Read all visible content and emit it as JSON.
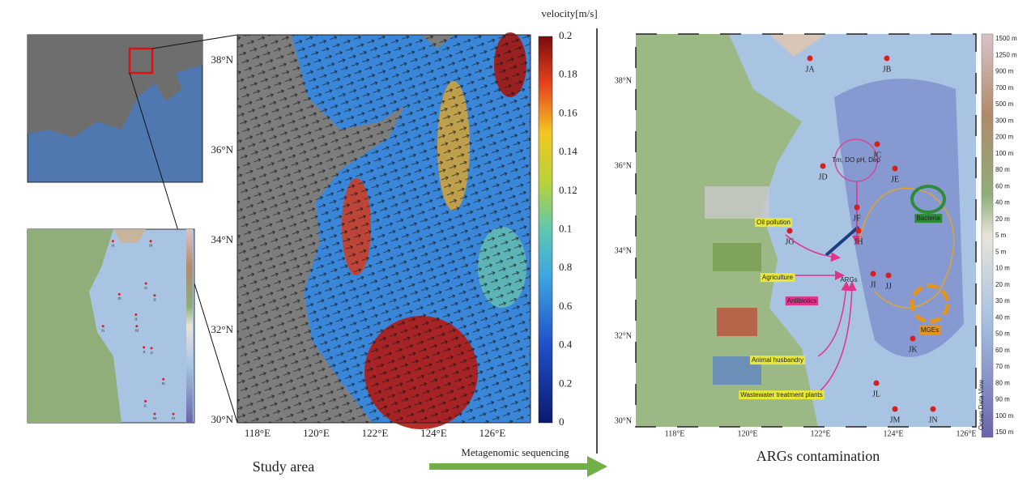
{
  "figure": {
    "left_panel": {
      "caption": "Study area",
      "y_labels": [
        "38°N",
        "36°N",
        "34°N",
        "32°N",
        "30°N"
      ],
      "x_labels": [
        "118°E",
        "120°E",
        "122°E",
        "124°E",
        "126°E"
      ],
      "colorbar_title": "velocity[m/s]",
      "colorbar_labels": [
        "0.2",
        "0.18",
        "0.16",
        "0.14",
        "0.12",
        "0.1",
        "0.8",
        "0.6",
        "0.4",
        "0.2",
        "0"
      ]
    },
    "arrow_label": "Metagenomic sequencing",
    "right_panel": {
      "caption": "ARGs contamination",
      "y_labels": [
        "38°N",
        "36°N",
        "34°N",
        "32°N",
        "30°N"
      ],
      "x_labels": [
        "118°E",
        "120°E",
        "122°E",
        "124°E",
        "126°E"
      ],
      "stations": [
        "JA",
        "JB",
        "JC",
        "JD",
        "JE",
        "JF",
        "JG",
        "JH",
        "JI",
        "JJ",
        "JK",
        "JL",
        "JM",
        "JN"
      ],
      "annotations": {
        "oil": "Oil pollution",
        "agriculture": "Agriculture",
        "antibiotics": "Antibiotics",
        "animal": "Animal husbandry",
        "wastewater": "Wastewater treatment plants",
        "args": "ARGs",
        "bacteria": "Bacteria",
        "mges": "MGEs",
        "params": "Tm, DO pH, Dep"
      },
      "depth_labels": [
        "1500 m",
        "1250 m",
        "900 m",
        "700 m",
        "500 m",
        "300 m",
        "200 m",
        "100 m",
        "80 m",
        "60 m",
        "40 m",
        "20 m",
        "5 m",
        "5 m",
        "10 m",
        "20 m",
        "30 m",
        "40 m",
        "50 m",
        "60 m",
        "70 m",
        "80 m",
        "90 m",
        "100 m",
        "150 m"
      ],
      "odv_label": "Ocean Data View"
    }
  }
}
